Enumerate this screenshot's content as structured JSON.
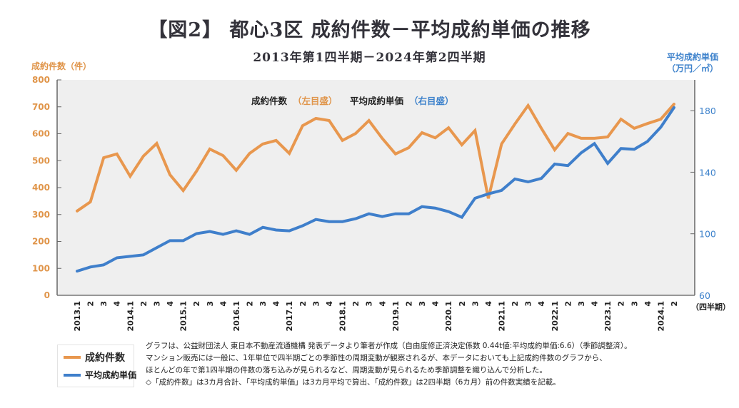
{
  "header": {
    "title": "【図2】 都心3区 成約件数－平均成約単価の推移",
    "subtitle": "2013年第1四半期－2024年第2四半期"
  },
  "axes": {
    "left_label": "成約件数（件）",
    "right_label_line1": "平均成約単価",
    "right_label_line2": "（万円／㎡）",
    "x_unit_label": "（四半期）"
  },
  "inline_legend": {
    "series1": "成約件数",
    "series1_note": "（左目盛）",
    "series2": "平均成約単価",
    "series2_note": "（右目盛）"
  },
  "legend": {
    "items": [
      {
        "label": "成約件数",
        "color": "#e8974e"
      },
      {
        "label": "平均成約単価",
        "color": "#3f7fcb"
      }
    ]
  },
  "notes": [
    "グラフは、公益財団法人 東日本不動産流通機構 発表データより筆者が作成（自由度修正済決定係数 0.44t値:平均成約単価:6.6）（季節調整済）。",
    "マンション販売には一般に、1年単位で四半期ごとの季節性の周期変動が観察されるが、本データにおいても上記成約件数のグラフから、",
    "ほとんどの年で第1四半期の件数の落ち込みが見られるなど、周期変動が見られるため季節調整を織り込んで分析した。",
    "◇「成約件数」は3カ月合計、「平均成約単価」は3カ月平均で算出、「成約件数」は2四半期（6カ月）前の件数実績を記載。"
  ],
  "colors": {
    "orange": "#e8974e",
    "blue": "#3f7fcb",
    "left_axis_text": "#e0954a",
    "right_axis_text": "#3f83cc",
    "plot_bg": "#efefef"
  },
  "chart_data": {
    "type": "line",
    "title": "【図2】 都心3区 成約件数－平均成約単価の推移",
    "subtitle": "2013年第1四半期－2024年第2四半期",
    "xlabel": "（四半期）",
    "ylabel": "成約件数（件）",
    "y2label": "平均成約単価（万円／㎡）",
    "ylim": [
      0,
      800
    ],
    "y2lim": [
      60,
      200
    ],
    "yticks": [
      0,
      100,
      200,
      300,
      400,
      500,
      600,
      700,
      800
    ],
    "y2ticks": [
      60,
      100,
      140,
      180
    ],
    "grid": false,
    "legend_position": "bottom-left",
    "x": [
      "2013.1",
      "2",
      "3",
      "4",
      "2014.1",
      "2",
      "3",
      "4",
      "2015.1",
      "2",
      "3",
      "4",
      "2016.1",
      "2",
      "3",
      "4",
      "2017.1",
      "2",
      "3",
      "4",
      "2018.1",
      "2",
      "3",
      "4",
      "2019.1",
      "2",
      "3",
      "4",
      "2020.1",
      "2",
      "3",
      "4",
      "2021.1",
      "2",
      "3",
      "4",
      "2022.1",
      "2",
      "3",
      "4",
      "2023.1",
      "2",
      "3",
      "4",
      "2024.1",
      "2"
    ],
    "series": [
      {
        "name": "成約件数",
        "axis": "left",
        "color": "#e8974e",
        "values": [
          313,
          347,
          511,
          525,
          442,
          517,
          564,
          448,
          389,
          461,
          543,
          519,
          464,
          527,
          562,
          575,
          527,
          630,
          657,
          649,
          575,
          601,
          649,
          583,
          525,
          548,
          604,
          585,
          622,
          559,
          612,
          360,
          562,
          636,
          705,
          620,
          540,
          601,
          583,
          583,
          588,
          654,
          620,
          638,
          654,
          710
        ]
      },
      {
        "name": "平均成約単価",
        "axis": "right",
        "color": "#3f7fcb",
        "values": [
          75.7,
          78.4,
          79.8,
          84.4,
          85.3,
          86.3,
          90.9,
          95.5,
          95.5,
          100.1,
          101.5,
          99.6,
          101.9,
          99.6,
          104.2,
          102.4,
          101.9,
          105.2,
          109.3,
          107.9,
          107.9,
          109.8,
          113.0,
          111.2,
          113.0,
          113.0,
          117.6,
          116.7,
          114.4,
          110.7,
          123.1,
          125.9,
          128.2,
          135.6,
          133.7,
          136.0,
          145.3,
          144.3,
          152.6,
          158.6,
          145.7,
          155.4,
          154.9,
          160.0,
          169.2,
          182.0
        ]
      }
    ]
  }
}
